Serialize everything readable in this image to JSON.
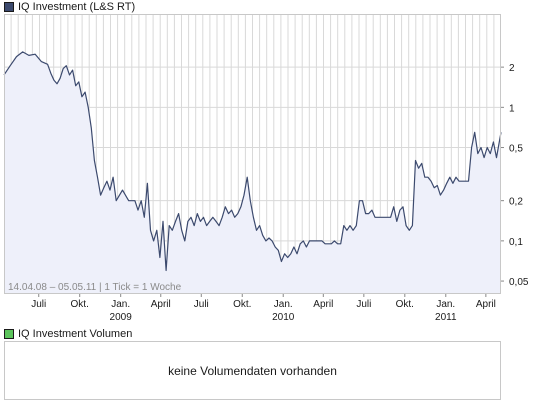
{
  "legend": {
    "price_title": "IQ Investment (L&S RT)",
    "price_color": "#3c4a6e",
    "volume_title": "IQ Investment Volumen",
    "volume_color": "#5cc45c"
  },
  "range_label": "14.04.08 – 05.05.11 | 1 Tick = 1 Woche",
  "volume_message": "keine Volumendaten vorhanden",
  "colors": {
    "line": "#3c4a6e",
    "fill": "#eef0fa",
    "grid": "#d9d9d9",
    "frame": "#c8c8c8"
  },
  "chart_data": {
    "type": "area",
    "title": "IQ Investment (L&S RT)",
    "y_scale": "log",
    "ylim": [
      0.04,
      5
    ],
    "y_ticks": [
      {
        "value": 2,
        "label": "2"
      },
      {
        "value": 1,
        "label": "1"
      },
      {
        "value": 0.5,
        "label": "0,5"
      },
      {
        "value": 0.2,
        "label": "0,2"
      },
      {
        "value": 0.1,
        "label": "0,1"
      },
      {
        "value": 0.05,
        "label": "0,05"
      }
    ],
    "x_range": [
      "2008-04-14",
      "2011-05-05"
    ],
    "x_ticks": [
      {
        "date": "2008-07-01",
        "label": "Juli",
        "year": ""
      },
      {
        "date": "2008-10-01",
        "label": "Okt.",
        "year": ""
      },
      {
        "date": "2009-01-01",
        "label": "Jan.",
        "year": "2009"
      },
      {
        "date": "2009-04-01",
        "label": "April",
        "year": ""
      },
      {
        "date": "2009-07-01",
        "label": "Juli",
        "year": ""
      },
      {
        "date": "2009-10-01",
        "label": "Okt.",
        "year": ""
      },
      {
        "date": "2010-01-01",
        "label": "Jan.",
        "year": "2010"
      },
      {
        "date": "2010-04-01",
        "label": "April",
        "year": ""
      },
      {
        "date": "2010-07-01",
        "label": "Juli",
        "year": ""
      },
      {
        "date": "2010-10-01",
        "label": "Okt.",
        "year": ""
      },
      {
        "date": "2011-01-01",
        "label": "Jan.",
        "year": "2011"
      },
      {
        "date": "2011-04-01",
        "label": "April",
        "year": ""
      }
    ],
    "grid": true,
    "series": [
      {
        "name": "IQ Investment (L&S RT)",
        "points": [
          [
            "2008-04-14",
            1.75
          ],
          [
            "2008-04-28",
            2.05
          ],
          [
            "2008-05-12",
            2.4
          ],
          [
            "2008-05-26",
            2.6
          ],
          [
            "2008-06-09",
            2.45
          ],
          [
            "2008-06-23",
            2.5
          ],
          [
            "2008-07-07",
            2.2
          ],
          [
            "2008-07-21",
            2.1
          ],
          [
            "2008-07-28",
            1.8
          ],
          [
            "2008-08-04",
            1.6
          ],
          [
            "2008-08-11",
            1.5
          ],
          [
            "2008-08-18",
            1.65
          ],
          [
            "2008-08-25",
            1.95
          ],
          [
            "2008-09-01",
            2.05
          ],
          [
            "2008-09-08",
            1.75
          ],
          [
            "2008-09-15",
            1.9
          ],
          [
            "2008-09-22",
            1.45
          ],
          [
            "2008-09-29",
            1.55
          ],
          [
            "2008-10-06",
            1.2
          ],
          [
            "2008-10-13",
            1.3
          ],
          [
            "2008-10-20",
            1.0
          ],
          [
            "2008-10-27",
            0.7
          ],
          [
            "2008-11-03",
            0.4
          ],
          [
            "2008-11-10",
            0.3
          ],
          [
            "2008-11-17",
            0.22
          ],
          [
            "2008-11-24",
            0.25
          ],
          [
            "2008-12-01",
            0.28
          ],
          [
            "2008-12-08",
            0.24
          ],
          [
            "2008-12-15",
            0.3
          ],
          [
            "2008-12-22",
            0.2
          ],
          [
            "2009-01-05",
            0.24
          ],
          [
            "2009-01-19",
            0.2
          ],
          [
            "2009-02-02",
            0.2
          ],
          [
            "2009-02-09",
            0.17
          ],
          [
            "2009-02-16",
            0.2
          ],
          [
            "2009-02-23",
            0.15
          ],
          [
            "2009-03-02",
            0.27
          ],
          [
            "2009-03-09",
            0.12
          ],
          [
            "2009-03-16",
            0.1
          ],
          [
            "2009-03-23",
            0.12
          ],
          [
            "2009-03-30",
            0.075
          ],
          [
            "2009-04-06",
            0.14
          ],
          [
            "2009-04-13",
            0.06
          ],
          [
            "2009-04-20",
            0.13
          ],
          [
            "2009-04-27",
            0.12
          ],
          [
            "2009-05-04",
            0.14
          ],
          [
            "2009-05-11",
            0.16
          ],
          [
            "2009-05-18",
            0.12
          ],
          [
            "2009-05-25",
            0.1
          ],
          [
            "2009-06-01",
            0.14
          ],
          [
            "2009-06-08",
            0.15
          ],
          [
            "2009-06-15",
            0.13
          ],
          [
            "2009-06-22",
            0.16
          ],
          [
            "2009-06-29",
            0.14
          ],
          [
            "2009-07-06",
            0.15
          ],
          [
            "2009-07-13",
            0.13
          ],
          [
            "2009-07-20",
            0.14
          ],
          [
            "2009-07-27",
            0.15
          ],
          [
            "2009-08-03",
            0.14
          ],
          [
            "2009-08-10",
            0.13
          ],
          [
            "2009-08-17",
            0.15
          ],
          [
            "2009-08-24",
            0.18
          ],
          [
            "2009-08-31",
            0.16
          ],
          [
            "2009-09-07",
            0.17
          ],
          [
            "2009-09-14",
            0.15
          ],
          [
            "2009-09-21",
            0.16
          ],
          [
            "2009-09-28",
            0.18
          ],
          [
            "2009-10-05",
            0.22
          ],
          [
            "2009-10-12",
            0.3
          ],
          [
            "2009-10-19",
            0.2
          ],
          [
            "2009-10-26",
            0.15
          ],
          [
            "2009-11-02",
            0.12
          ],
          [
            "2009-11-09",
            0.13
          ],
          [
            "2009-11-16",
            0.11
          ],
          [
            "2009-11-23",
            0.1
          ],
          [
            "2009-11-30",
            0.105
          ],
          [
            "2009-12-07",
            0.1
          ],
          [
            "2009-12-14",
            0.09
          ],
          [
            "2009-12-21",
            0.085
          ],
          [
            "2009-12-28",
            0.07
          ],
          [
            "2010-01-04",
            0.08
          ],
          [
            "2010-01-11",
            0.075
          ],
          [
            "2010-01-18",
            0.08
          ],
          [
            "2010-01-25",
            0.09
          ],
          [
            "2010-02-01",
            0.08
          ],
          [
            "2010-02-08",
            0.095
          ],
          [
            "2010-02-15",
            0.1
          ],
          [
            "2010-02-22",
            0.09
          ],
          [
            "2010-03-01",
            0.1
          ],
          [
            "2010-03-08",
            0.1
          ],
          [
            "2010-03-29",
            0.1
          ],
          [
            "2010-04-05",
            0.095
          ],
          [
            "2010-04-19",
            0.095
          ],
          [
            "2010-04-26",
            0.1
          ],
          [
            "2010-05-03",
            0.095
          ],
          [
            "2010-05-10",
            0.095
          ],
          [
            "2010-05-17",
            0.13
          ],
          [
            "2010-05-24",
            0.12
          ],
          [
            "2010-05-31",
            0.13
          ],
          [
            "2010-06-07",
            0.12
          ],
          [
            "2010-06-14",
            0.13
          ],
          [
            "2010-06-21",
            0.2
          ],
          [
            "2010-06-28",
            0.2
          ],
          [
            "2010-07-05",
            0.16
          ],
          [
            "2010-07-12",
            0.16
          ],
          [
            "2010-07-19",
            0.17
          ],
          [
            "2010-07-26",
            0.15
          ],
          [
            "2010-08-02",
            0.15
          ],
          [
            "2010-08-23",
            0.15
          ],
          [
            "2010-08-30",
            0.15
          ],
          [
            "2010-09-06",
            0.18
          ],
          [
            "2010-09-13",
            0.14
          ],
          [
            "2010-09-20",
            0.17
          ],
          [
            "2010-09-27",
            0.18
          ],
          [
            "2010-10-04",
            0.13
          ],
          [
            "2010-10-11",
            0.12
          ],
          [
            "2010-10-18",
            0.13
          ],
          [
            "2010-10-25",
            0.4
          ],
          [
            "2010-11-01",
            0.35
          ],
          [
            "2010-11-08",
            0.38
          ],
          [
            "2010-11-15",
            0.3
          ],
          [
            "2010-11-22",
            0.3
          ],
          [
            "2010-11-29",
            0.28
          ],
          [
            "2010-12-06",
            0.25
          ],
          [
            "2010-12-13",
            0.26
          ],
          [
            "2010-12-20",
            0.22
          ],
          [
            "2010-12-27",
            0.24
          ],
          [
            "2011-01-03",
            0.27
          ],
          [
            "2011-01-10",
            0.3
          ],
          [
            "2011-01-17",
            0.27
          ],
          [
            "2011-01-24",
            0.3
          ],
          [
            "2011-01-31",
            0.28
          ],
          [
            "2011-02-07",
            0.28
          ],
          [
            "2011-02-14",
            0.28
          ],
          [
            "2011-02-21",
            0.28
          ],
          [
            "2011-02-28",
            0.5
          ],
          [
            "2011-03-07",
            0.65
          ],
          [
            "2011-03-14",
            0.45
          ],
          [
            "2011-03-21",
            0.5
          ],
          [
            "2011-03-28",
            0.42
          ],
          [
            "2011-04-04",
            0.5
          ],
          [
            "2011-04-11",
            0.45
          ],
          [
            "2011-04-18",
            0.55
          ],
          [
            "2011-04-25",
            0.42
          ],
          [
            "2011-05-05",
            0.65
          ]
        ]
      }
    ]
  }
}
